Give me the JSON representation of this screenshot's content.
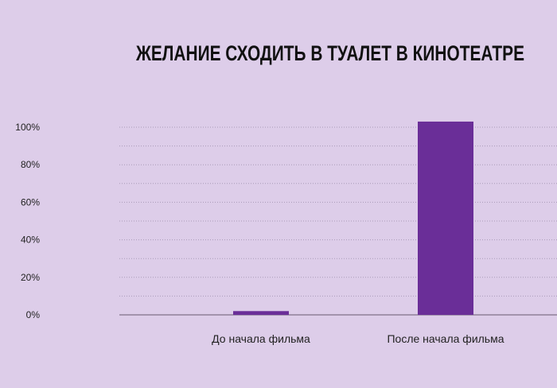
{
  "chart_data": {
    "type": "bar",
    "title": "ЖЕЛАНИЕ СХОДИТЬ В ТУАЛЕТ В КИНОТЕАТРЕ",
    "categories": [
      "До начала фильма",
      "После начала фильма"
    ],
    "values": [
      2,
      103
    ],
    "ylim": [
      0,
      100
    ],
    "yticks": [
      "0%",
      "20%",
      "40%",
      "60%",
      "80%",
      "100%"
    ],
    "grid": true,
    "xlabel": "",
    "ylabel": ""
  },
  "colors": {
    "background": "#ddcde9",
    "bar": "#6a2e98",
    "grid": "#a99bb8",
    "axis": "#8e8098"
  }
}
